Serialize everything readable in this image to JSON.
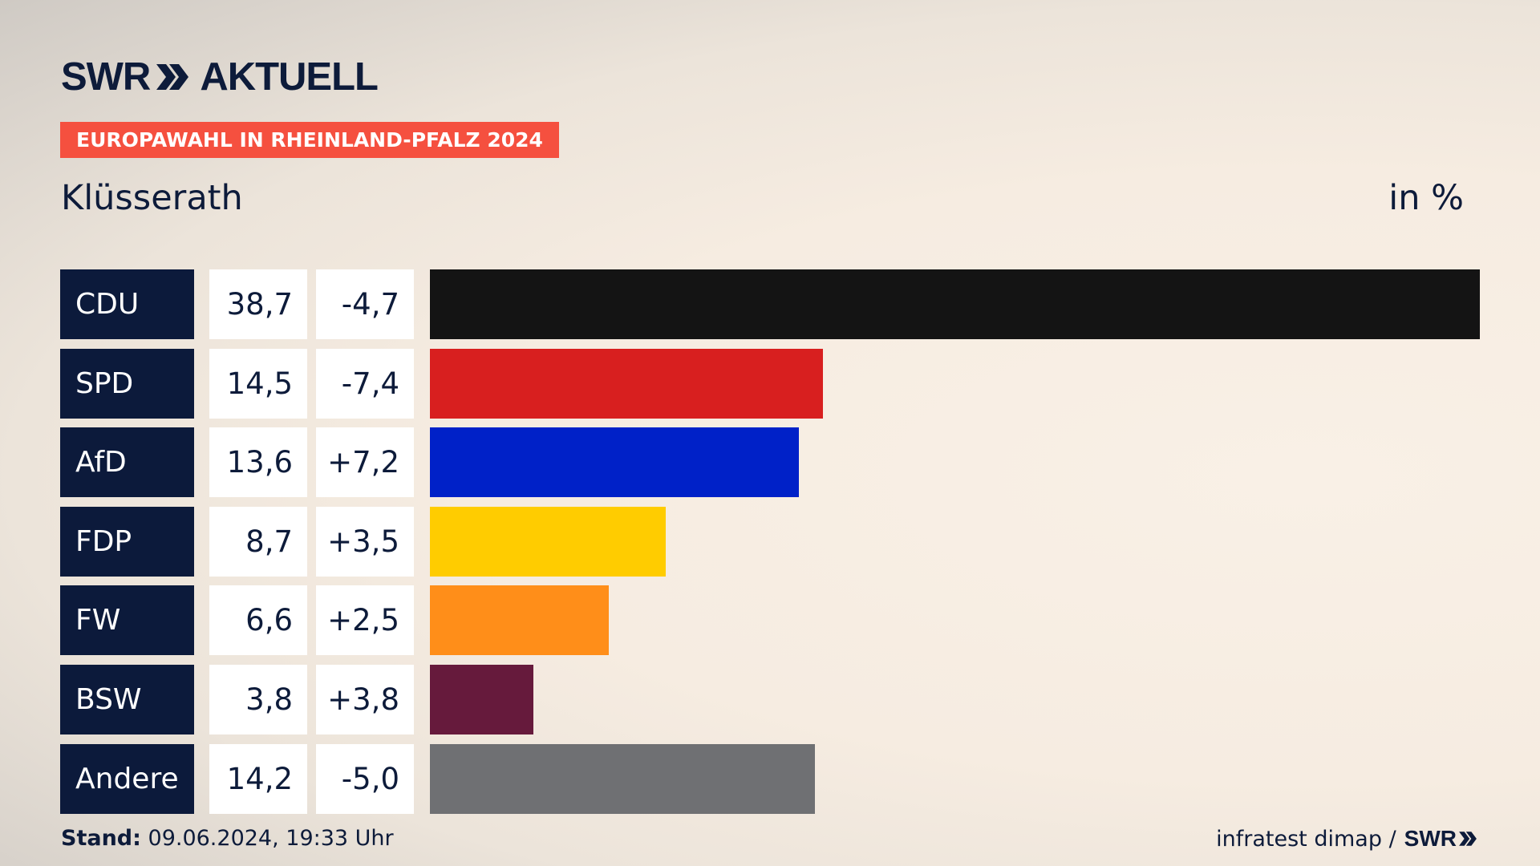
{
  "header": {
    "logo_text": "SWR",
    "logo_suffix": "AKTUELL",
    "tag": "EUROPAWAHL IN RHEINLAND-PFALZ 2024",
    "place": "Klüsserath",
    "unit": "in %"
  },
  "chart_data": {
    "type": "bar",
    "orientation": "horizontal",
    "categories": [
      "CDU",
      "SPD",
      "AfD",
      "FDP",
      "FW",
      "BSW",
      "Andere"
    ],
    "values": [
      38.7,
      14.5,
      13.6,
      8.7,
      6.6,
      3.8,
      14.2
    ],
    "value_labels": [
      "38,7",
      "14,5",
      "13,6",
      "8,7",
      "6,6",
      "3,8",
      "14,2"
    ],
    "diff_labels": [
      "-4,7",
      "-7,4",
      "+7,2",
      "+3,5",
      "+2,5",
      "+3,8",
      "-5,0"
    ],
    "colors": [
      "#141414",
      "#d81f1f",
      "#0021c8",
      "#ffcc00",
      "#ff8e19",
      "#661a3c",
      "#6f7073"
    ],
    "xlim": [
      0,
      38.7
    ],
    "grid": false,
    "legend": "none"
  },
  "footer": {
    "stand_label": "Stand:",
    "stand_value": "09.06.2024, 19:33 Uhr",
    "source": "infratest dimap /",
    "brand": "SWR"
  }
}
